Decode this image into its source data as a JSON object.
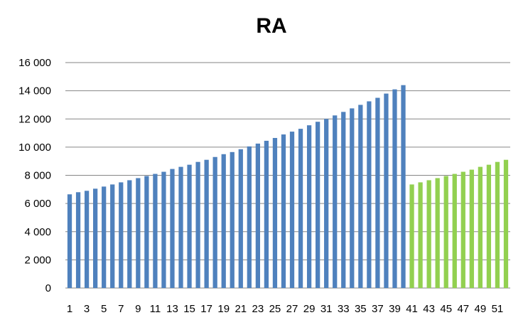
{
  "chart_data": {
    "type": "bar",
    "title": "RA",
    "xlabel": "",
    "ylabel": "",
    "ylim": [
      0,
      16000
    ],
    "yticks": [
      "0",
      "2 000",
      "4 000",
      "6 000",
      "8 000",
      "10 000",
      "12 000",
      "14 000",
      "16 000"
    ],
    "ytick_values": [
      0,
      2000,
      4000,
      6000,
      8000,
      10000,
      12000,
      14000,
      16000
    ],
    "grid": true,
    "legend": "none",
    "categories": [
      "1",
      "2",
      "3",
      "4",
      "5",
      "6",
      "7",
      "8",
      "9",
      "10",
      "11",
      "12",
      "13",
      "14",
      "15",
      "16",
      "17",
      "18",
      "19",
      "20",
      "21",
      "22",
      "23",
      "24",
      "25",
      "26",
      "27",
      "28",
      "29",
      "30",
      "31",
      "32",
      "33",
      "34",
      "35",
      "36",
      "37",
      "38",
      "39",
      "40",
      "41",
      "42",
      "43",
      "44",
      "45",
      "46",
      "47",
      "48",
      "49",
      "50",
      "51",
      "52"
    ],
    "x_tick_labels": [
      "1",
      "3",
      "5",
      "7",
      "9",
      "11",
      "13",
      "15",
      "17",
      "19",
      "21",
      "23",
      "25",
      "27",
      "29",
      "31",
      "33",
      "35",
      "37",
      "39",
      "41",
      "43",
      "45",
      "47",
      "49",
      "51"
    ],
    "values": [
      6650,
      6800,
      6900,
      7050,
      7200,
      7350,
      7500,
      7650,
      7800,
      7950,
      8100,
      8250,
      8450,
      8600,
      8750,
      8950,
      9100,
      9300,
      9500,
      9650,
      9850,
      10050,
      10250,
      10450,
      10650,
      10900,
      11100,
      11300,
      11550,
      11800,
      12000,
      12250,
      12500,
      12750,
      13000,
      13250,
      13500,
      13800,
      14100,
      14400,
      7350,
      7500,
      7650,
      7800,
      7950,
      8100,
      8250,
      8400,
      8600,
      8750,
      8950,
      9100
    ],
    "colors": {
      "series_a": "#4f81bd",
      "series_b": "#92d050",
      "grid": "#868686",
      "axis": "#868686"
    },
    "series_split_index": 40
  }
}
